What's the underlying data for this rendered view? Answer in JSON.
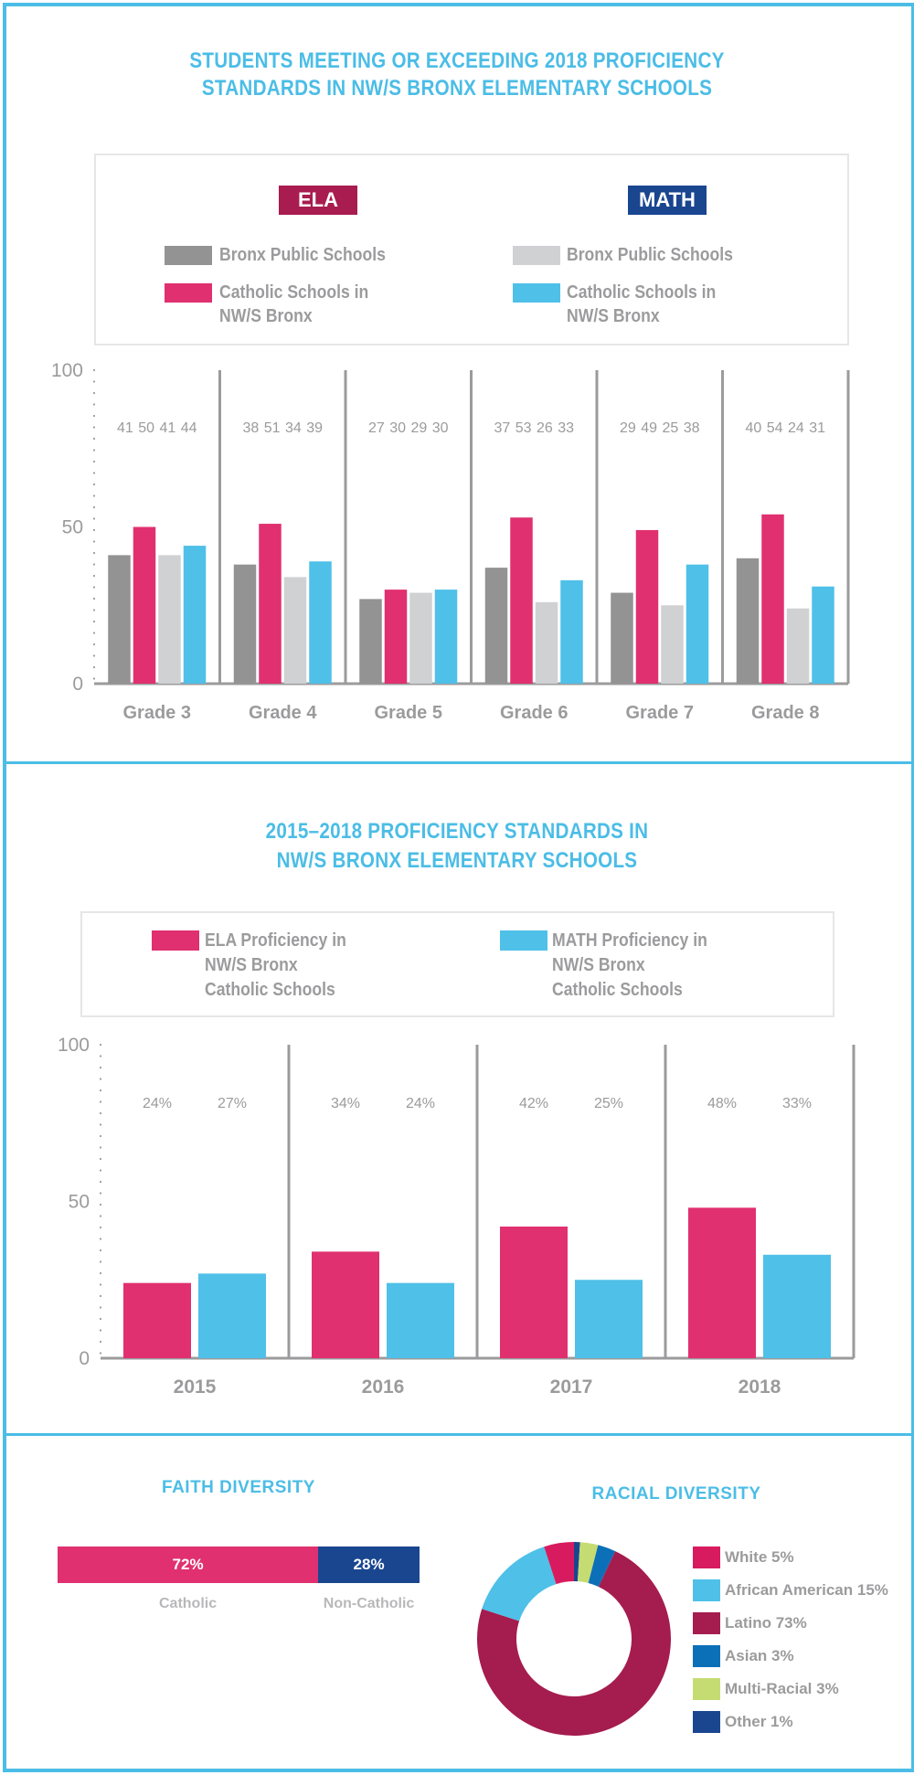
{
  "colors": {
    "frame": "#4bbde6",
    "title": "#4bbde6",
    "ela_public": "#939393",
    "ela_catholic": "#e03070",
    "math_public": "#d0d1d3",
    "math_catholic": "#4fc0e8",
    "ela_badge": "#a81c4f",
    "math_badge": "#1a4690",
    "axis": "#9b9b9d",
    "catholic": "#e03070",
    "non_catholic": "#1a4690"
  },
  "chart1": {
    "title_line1": "STUDENTS MEETING OR EXCEEDING 2018 PROFICIENCY",
    "title_line2": "STANDARDS IN NW/S BRONX ELEMENTARY SCHOOLS",
    "legend": {
      "ela_badge": "ELA",
      "math_badge": "MATH",
      "ela_public": "Bronx Public Schools",
      "ela_catholic": "Catholic Schools in\nNW/S Bronx",
      "math_public": "Bronx Public Schools",
      "math_catholic": "Catholic Schools in\nNW/S Bronx"
    }
  },
  "chart2": {
    "title_line1": "2015–2018 PROFICIENCY STANDARDS IN",
    "title_line2": "NW/S BRONX ELEMENTARY SCHOOLS",
    "legend": {
      "ela": "ELA Proficiency in\n NW/S Bronx\nCatholic Schools",
      "math": "MATH Proficiency in\nNW/S Bronx\nCatholic Schools"
    }
  },
  "faith": {
    "title": "FAITH DIVERSITY",
    "segments": [
      {
        "label": "Catholic",
        "value": 72,
        "text": "72%"
      },
      {
        "label": "Non-Catholic",
        "value": 28,
        "text": "28%"
      }
    ]
  },
  "race": {
    "title": "RACIAL DIVERSITY",
    "legend": [
      {
        "label": "White 5%",
        "color": "#d81b5e"
      },
      {
        "label": "African American 15%",
        "color": "#4fc0e8"
      },
      {
        "label": "Latino 73%",
        "color": "#a51c4f"
      },
      {
        "label": "Asian 3%",
        "color": "#0c70b8"
      },
      {
        "label": "Multi-Racial 3%",
        "color": "#c5dc72"
      },
      {
        "label": "Other 1%",
        "color": "#1a4690"
      }
    ]
  },
  "chart_data": [
    {
      "type": "bar",
      "title": "STUDENTS MEETING OR EXCEEDING 2018 PROFICIENCY STANDARDS IN NW/S BRONX ELEMENTARY SCHOOLS",
      "categories": [
        "Grade 3",
        "Grade 4",
        "Grade 5",
        "Grade 6",
        "Grade 7",
        "Grade 8"
      ],
      "series": [
        {
          "name": "ELA - Bronx Public Schools",
          "color": "#939393",
          "values": [
            41,
            38,
            27,
            37,
            29,
            40
          ]
        },
        {
          "name": "ELA - Catholic Schools in NW/S Bronx",
          "color": "#e03070",
          "values": [
            50,
            51,
            30,
            53,
            49,
            54
          ]
        },
        {
          "name": "MATH - Bronx Public Schools",
          "color": "#d0d1d3",
          "values": [
            41,
            34,
            29,
            26,
            25,
            24
          ]
        },
        {
          "name": "MATH - Catholic Schools in NW/S Bronx",
          "color": "#4fc0e8",
          "values": [
            44,
            39,
            30,
            33,
            38,
            31
          ]
        }
      ],
      "yticks": [
        0,
        50,
        100
      ],
      "ylim": [
        0,
        100
      ],
      "xlabel": "",
      "ylabel": "",
      "legend": "top",
      "grid": false
    },
    {
      "type": "bar",
      "title": "2015–2018 PROFICIENCY STANDARDS IN NW/S BRONX ELEMENTARY SCHOOLS",
      "categories": [
        "2015",
        "2016",
        "2017",
        "2018"
      ],
      "series": [
        {
          "name": "ELA Proficiency in NW/S Bronx Catholic Schools",
          "color": "#e03070",
          "values": [
            24,
            34,
            42,
            48
          ],
          "labels": [
            "24%",
            "34%",
            "42%",
            "48%"
          ]
        },
        {
          "name": "MATH Proficiency in NW/S Bronx Catholic Schools",
          "color": "#4fc0e8",
          "values": [
            27,
            24,
            25,
            33
          ],
          "labels": [
            "27%",
            "24%",
            "25%",
            "33%"
          ]
        }
      ],
      "yticks": [
        0,
        50,
        100
      ],
      "ylim": [
        0,
        100
      ],
      "xlabel": "",
      "ylabel": "",
      "legend": "top",
      "grid": false
    },
    {
      "type": "bar",
      "title": "FAITH DIVERSITY",
      "categories": [
        "Catholic",
        "Non-Catholic"
      ],
      "values": [
        72,
        28
      ],
      "stacked": true,
      "orientation": "horizontal"
    },
    {
      "type": "pie",
      "title": "RACIAL DIVERSITY",
      "donut": true,
      "categories": [
        "Other",
        "Multi-Racial",
        "Asian",
        "Latino",
        "African American",
        "White"
      ],
      "values": [
        1,
        3,
        3,
        73,
        15,
        5
      ],
      "colors": [
        "#1a4690",
        "#c5dc72",
        "#0c70b8",
        "#a51c4f",
        "#4fc0e8",
        "#d81b5e"
      ],
      "legend": "right"
    }
  ]
}
